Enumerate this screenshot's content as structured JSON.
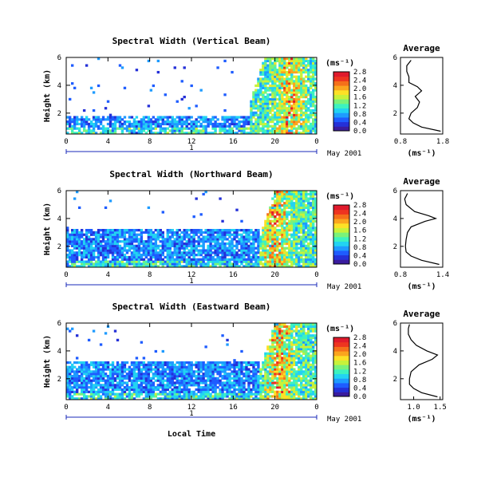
{
  "figure": {
    "xlabel": "Local Time",
    "colors": {
      "colormap": [
        "#3a1c9e",
        "#2430d8",
        "#1e5cff",
        "#1e9bff",
        "#22d3f2",
        "#3cf2c0",
        "#7af27a",
        "#c8f23a",
        "#fde126",
        "#fba51e",
        "#f5701a",
        "#ee3420",
        "#e01a2c"
      ]
    }
  },
  "chart_data": [
    {
      "type": "heatmap",
      "title": "Spectral Width (Vertical Beam)",
      "ylabel": "Height (km)",
      "xlim": [
        0,
        24
      ],
      "ylim": [
        0.5,
        6
      ],
      "x_ticks": [
        "0",
        "4",
        "8",
        "12",
        "16",
        "20",
        "0"
      ],
      "y_ticks": [
        "2",
        "4",
        "6"
      ],
      "day_marker": "1",
      "date_label": "May 2001",
      "colorbar": {
        "unit": "(ms⁻¹)",
        "range": [
          0.0,
          2.8
        ],
        "ticks": [
          "0.0",
          "0.4",
          "0.8",
          "1.2",
          "1.6",
          "2.0",
          "2.4",
          "2.8"
        ]
      },
      "pattern": {
        "echo_top_km": 1.8,
        "convective_start_h": 17.5,
        "strong_core_h": 21.5,
        "fill_density": 0.75
      },
      "average_profile": {
        "title": "Average",
        "xlabel": "(ms⁻¹)",
        "xlim": [
          0.8,
          1.8
        ],
        "x_ticks": [
          "0.8",
          "1.8"
        ],
        "ylim": [
          0.5,
          6
        ],
        "y_ticks": [
          "2",
          "4",
          "6"
        ],
        "height_km": [
          0.7,
          1.0,
          1.3,
          1.6,
          2.0,
          2.4,
          2.8,
          3.2,
          3.6,
          3.9,
          4.2,
          4.6,
          5.0,
          5.4,
          5.8
        ],
        "width": [
          1.75,
          1.3,
          1.1,
          1.0,
          1.05,
          1.2,
          1.25,
          1.15,
          1.3,
          1.2,
          1.0,
          1.0,
          0.95,
          0.95,
          1.05
        ]
      }
    },
    {
      "type": "heatmap",
      "title": "Spectral Width (Northward Beam)",
      "ylabel": "Height (km)",
      "xlim": [
        0,
        24
      ],
      "ylim": [
        0.5,
        6
      ],
      "x_ticks": [
        "0",
        "4",
        "8",
        "12",
        "16",
        "20",
        "0"
      ],
      "y_ticks": [
        "2",
        "4",
        "6"
      ],
      "day_marker": "1",
      "date_label": "May 2001",
      "colorbar": {
        "unit": "(ms⁻¹)",
        "range": [
          0.0,
          2.8
        ],
        "ticks": [
          "0.0",
          "0.4",
          "0.8",
          "1.2",
          "1.6",
          "2.0",
          "2.4",
          "2.8"
        ]
      },
      "pattern": {
        "echo_top_km": 3.3,
        "convective_start_h": 18.5,
        "strong_core_h": 20.0,
        "fill_density": 0.85
      },
      "average_profile": {
        "title": "Average",
        "xlabel": "(ms⁻¹)",
        "xlim": [
          0.8,
          1.4
        ],
        "x_ticks": [
          "0.8",
          "1.4"
        ],
        "ylim": [
          0.5,
          6
        ],
        "y_ticks": [
          "2",
          "4",
          "6"
        ],
        "height_km": [
          0.7,
          1.0,
          1.3,
          1.6,
          2.0,
          2.5,
          3.0,
          3.4,
          3.8,
          4.0,
          4.2,
          4.5,
          5.0,
          5.4,
          5.8
        ],
        "width": [
          1.35,
          1.1,
          0.95,
          0.88,
          0.87,
          0.88,
          0.9,
          0.95,
          1.15,
          1.3,
          1.2,
          1.0,
          0.88,
          0.86,
          0.9
        ]
      }
    },
    {
      "type": "heatmap",
      "title": "Spectral Width (Eastward Beam)",
      "ylabel": "Height (km)",
      "xlim": [
        0,
        24
      ],
      "ylim": [
        0.5,
        6
      ],
      "x_ticks": [
        "0",
        "4",
        "8",
        "12",
        "16",
        "20",
        "0"
      ],
      "y_ticks": [
        "2",
        "4",
        "6"
      ],
      "day_marker": "1",
      "date_label": "May 2001",
      "colorbar": {
        "unit": "(ms⁻¹)",
        "range": [
          0.0,
          2.8
        ],
        "ticks": [
          "0.0",
          "0.4",
          "0.8",
          "1.2",
          "1.6",
          "2.0",
          "2.4",
          "2.8"
        ]
      },
      "pattern": {
        "echo_top_km": 3.2,
        "convective_start_h": 18.5,
        "strong_core_h": 20.5,
        "fill_density": 0.85
      },
      "average_profile": {
        "title": "Average",
        "xlabel": "(ms⁻¹)",
        "xlim": [
          0.75,
          1.55
        ],
        "x_ticks": [
          "1.0",
          "1.5"
        ],
        "ylim": [
          0.5,
          6
        ],
        "y_ticks": [
          "2",
          "4",
          "6"
        ],
        "height_km": [
          0.7,
          1.0,
          1.3,
          1.6,
          2.0,
          2.5,
          3.0,
          3.4,
          3.7,
          4.0,
          4.4,
          4.8,
          5.2,
          5.6,
          5.9
        ],
        "width": [
          1.45,
          1.15,
          1.0,
          0.92,
          0.92,
          0.95,
          1.1,
          1.35,
          1.45,
          1.25,
          1.05,
          0.95,
          0.9,
          0.9,
          0.92
        ]
      }
    }
  ]
}
